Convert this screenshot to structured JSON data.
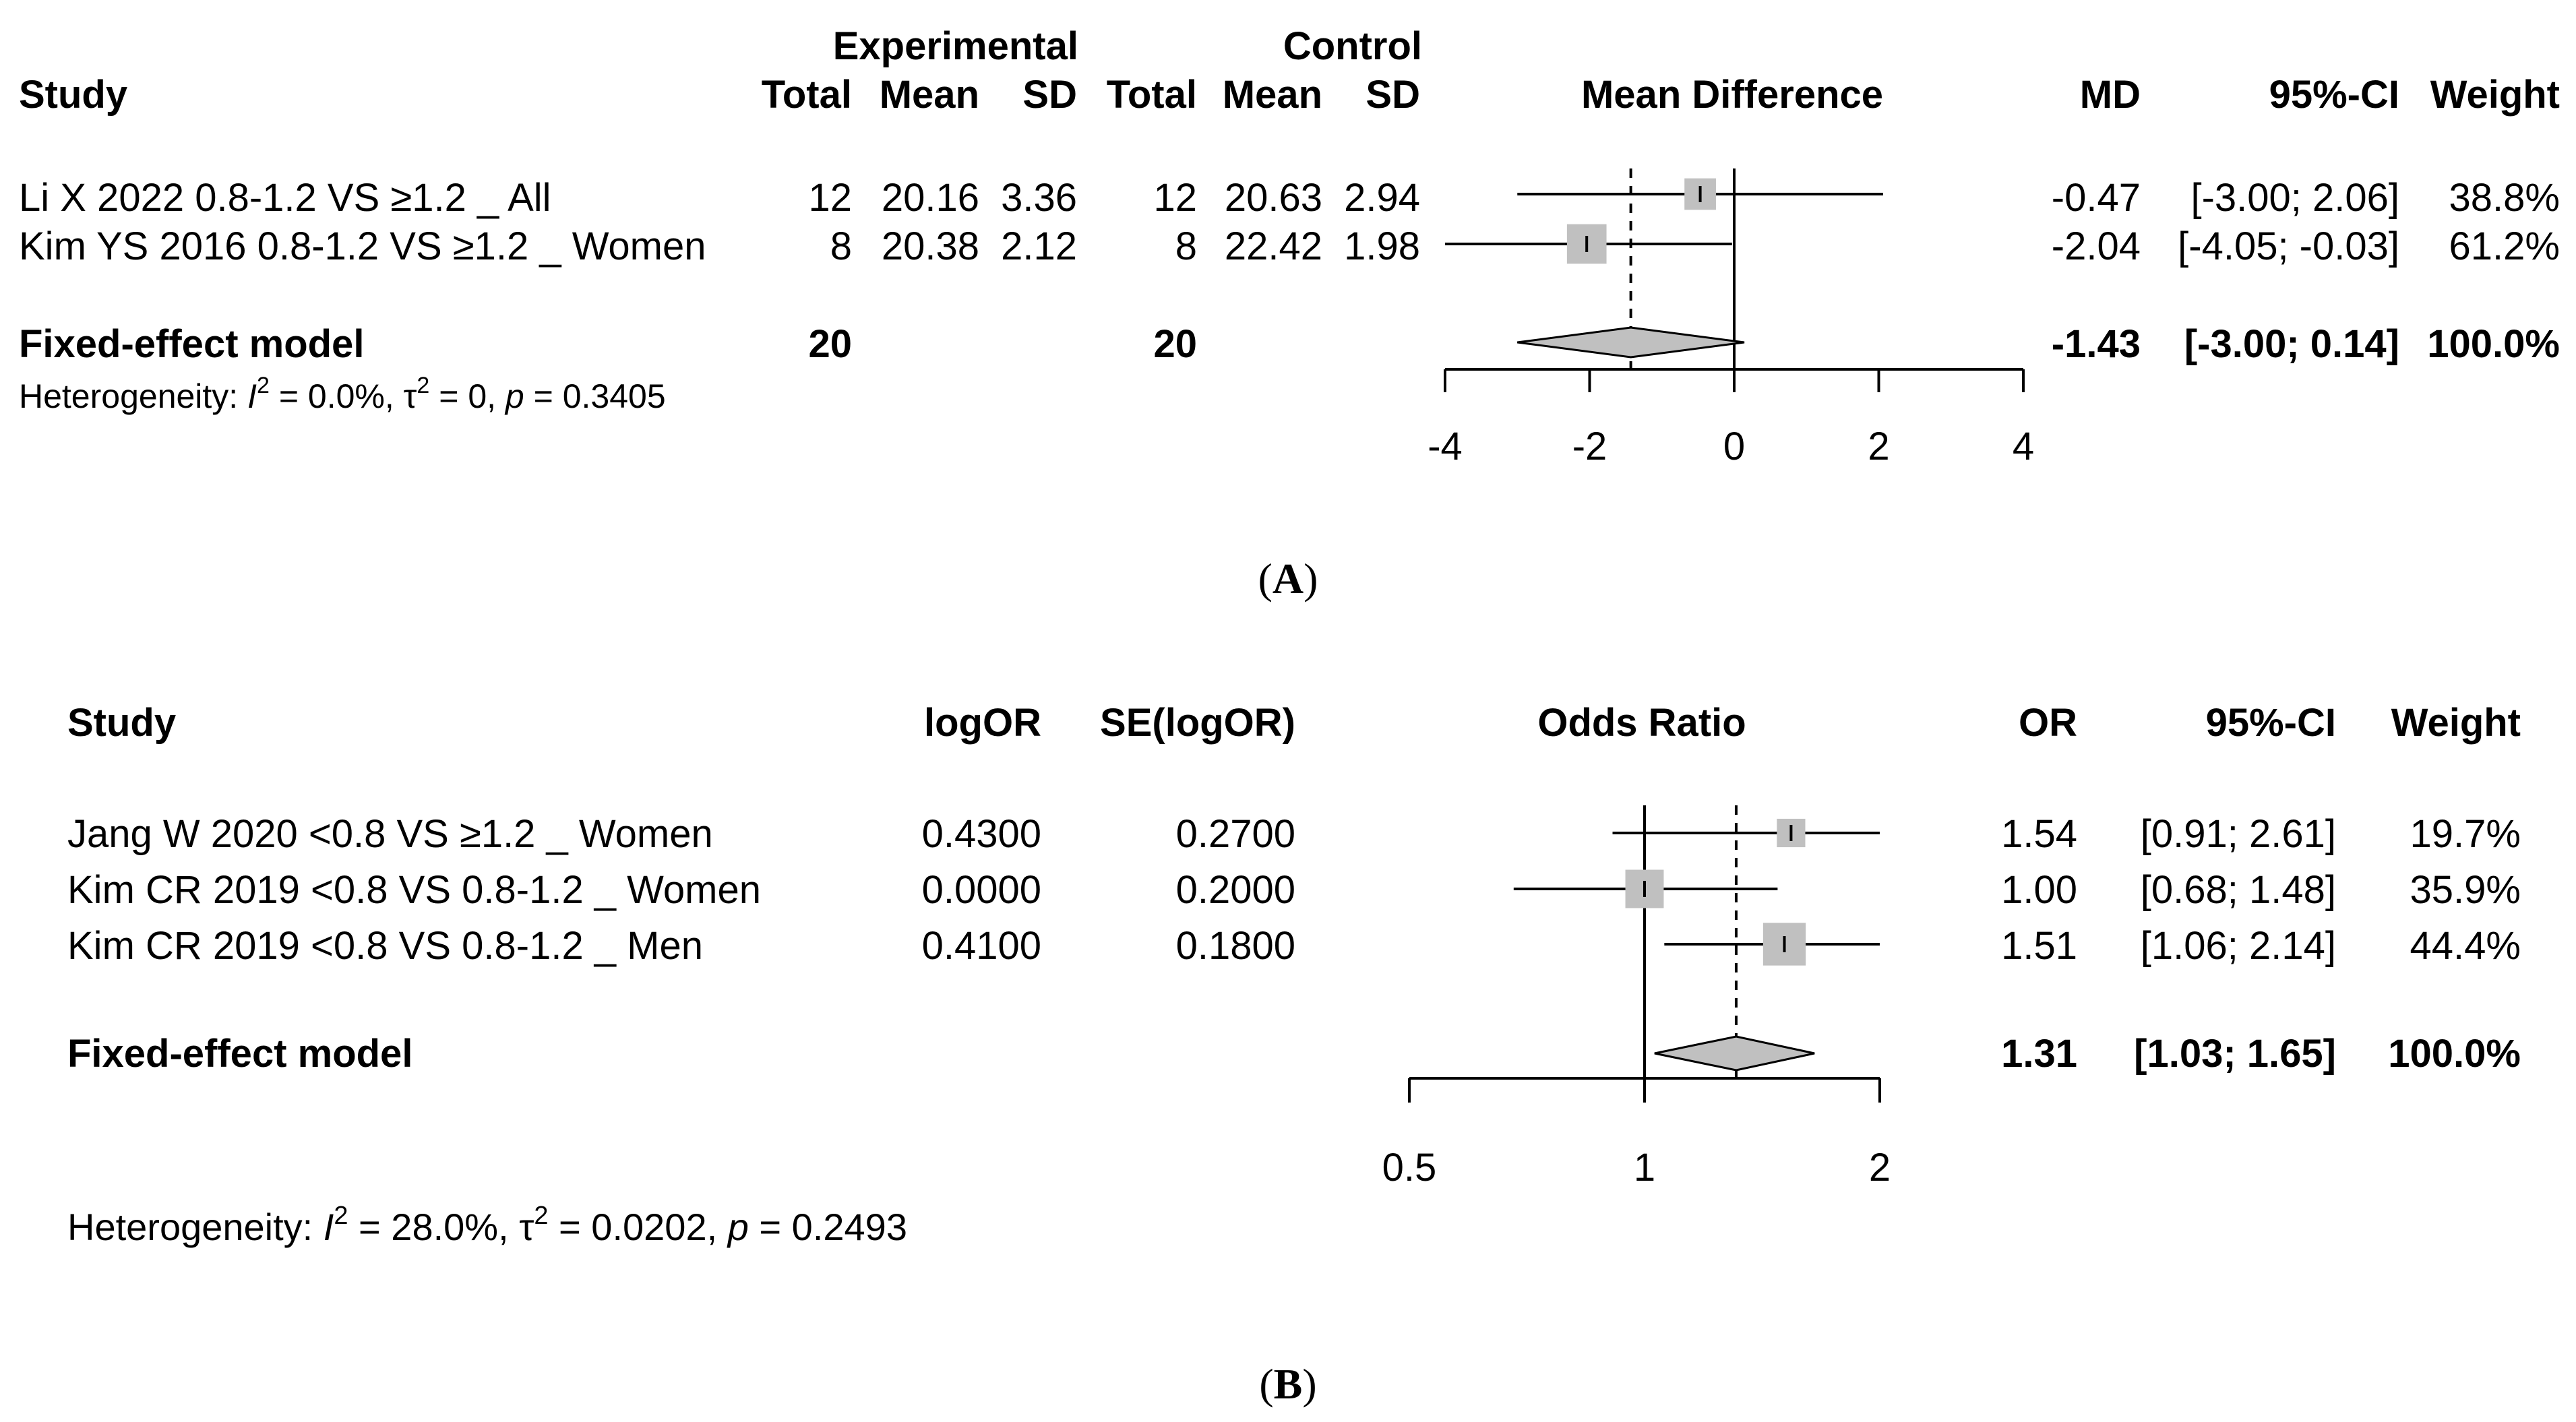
{
  "panelA": {
    "caption": "A",
    "header": {
      "group_experimental": "Experimental",
      "group_control": "Control",
      "study": "Study",
      "total": "Total",
      "mean": "Mean",
      "sd": "SD",
      "plot_title": "Mean Difference",
      "md": "MD",
      "ci": "95%-CI",
      "weight": "Weight"
    },
    "rows": [
      {
        "study": "Li X 2022 0.8-1.2 VS ≥1.2 _ All",
        "e_total": "12",
        "e_mean": "20.16",
        "e_sd": "3.36",
        "c_total": "12",
        "c_mean": "20.63",
        "c_sd": "2.94",
        "md": "-0.47",
        "ci": "[-3.00; 2.06]",
        "weight": "38.8%"
      },
      {
        "study": "Kim YS 2016 0.8-1.2 VS ≥1.2 _ Women",
        "e_total": "8",
        "e_mean": "20.38",
        "e_sd": "2.12",
        "c_total": "8",
        "c_mean": "22.42",
        "c_sd": "1.98",
        "md": "-2.04",
        "ci": "[-4.05; -0.03]",
        "weight": "61.2%"
      }
    ],
    "model": {
      "label": "Fixed-effect model",
      "e_total": "20",
      "c_total": "20",
      "md": "-1.43",
      "ci": "[-3.00; 0.14]",
      "weight": "100.0%"
    },
    "heterogeneity": {
      "prefix": "Heterogeneity: ",
      "i2_sym": "I",
      "exp": "2",
      "i2_val": " = 0.0%, ",
      "tau_sym": "τ",
      "tau_val": " = 0, ",
      "p_sym": "p",
      "p_val": " = 0.3405"
    },
    "ticks": [
      "-4",
      "-2",
      "0",
      "2",
      "4"
    ]
  },
  "panelB": {
    "caption": "B",
    "header": {
      "study": "Study",
      "logor": "logOR",
      "se": "SE(logOR)",
      "plot_title": "Odds Ratio",
      "or": "OR",
      "ci": "95%-CI",
      "weight": "Weight"
    },
    "rows": [
      {
        "study": "Jang W  2020 <0.8 VS ≥1.2 _ Women",
        "logor": "0.4300",
        "se": "0.2700",
        "or": "1.54",
        "ci": "[0.91; 2.61]",
        "weight": "19.7%"
      },
      {
        "study": "Kim CR  2019 <0.8 VS 0.8-1.2 _ Women",
        "logor": "0.0000",
        "se": "0.2000",
        "or": "1.00",
        "ci": "[0.68; 1.48]",
        "weight": "35.9%"
      },
      {
        "study": "Kim CR  2019 <0.8 VS 0.8-1.2 _ Men",
        "logor": "0.4100",
        "se": "0.1800",
        "or": "1.51",
        "ci": "[1.06; 2.14]",
        "weight": "44.4%"
      }
    ],
    "model": {
      "label": "Fixed-effect model",
      "or": "1.31",
      "ci": "[1.03; 1.65]",
      "weight": "100.0%"
    },
    "heterogeneity": {
      "prefix": "Heterogeneity: ",
      "i2_sym": "I",
      "exp": "2",
      "i2_val": " = 28.0%, ",
      "tau_sym": "τ",
      "tau_val": " = 0.0202, ",
      "p_sym": "p",
      "p_val": " = 0.2493"
    },
    "ticks": [
      "0.5",
      "1",
      "2"
    ]
  },
  "colors": {
    "square": "#c0c0c0",
    "diamond": "#c0c0c0",
    "line": "#000000"
  },
  "chart_data": [
    {
      "type": "forest",
      "title": "",
      "xlabel": "Mean Difference",
      "scale": "linear",
      "xlim": [
        -4,
        4
      ],
      "null_value": 0,
      "studies": [
        {
          "name": "Li X 2022 0.8-1.2 VS ≥1.2 _ All",
          "estimate": -0.47,
          "lower": -3.0,
          "upper": 2.06,
          "weight": 38.8
        },
        {
          "name": "Kim YS 2016 0.8-1.2 VS ≥1.2 _ Women",
          "estimate": -2.04,
          "lower": -4.05,
          "upper": -0.03,
          "weight": 61.2
        }
      ],
      "pooled": {
        "name": "Fixed-effect model",
        "estimate": -1.43,
        "lower": -3.0,
        "upper": 0.14,
        "weight": 100.0
      }
    },
    {
      "type": "forest",
      "title": "",
      "xlabel": "Odds Ratio",
      "scale": "log",
      "xlim": [
        0.5,
        2
      ],
      "null_value": 1,
      "studies": [
        {
          "name": "Jang W  2020 <0.8 VS ≥1.2 _ Women",
          "estimate": 1.54,
          "lower": 0.91,
          "upper": 2.61,
          "weight": 19.7
        },
        {
          "name": "Kim CR  2019 <0.8 VS 0.8-1.2 _ Women",
          "estimate": 1.0,
          "lower": 0.68,
          "upper": 1.48,
          "weight": 35.9
        },
        {
          "name": "Kim CR  2019 <0.8 VS 0.8-1.2 _ Men",
          "estimate": 1.51,
          "lower": 1.06,
          "upper": 2.14,
          "weight": 44.4
        }
      ],
      "pooled": {
        "name": "Fixed-effect model",
        "estimate": 1.31,
        "lower": 1.03,
        "upper": 1.65,
        "weight": 100.0
      }
    }
  ]
}
